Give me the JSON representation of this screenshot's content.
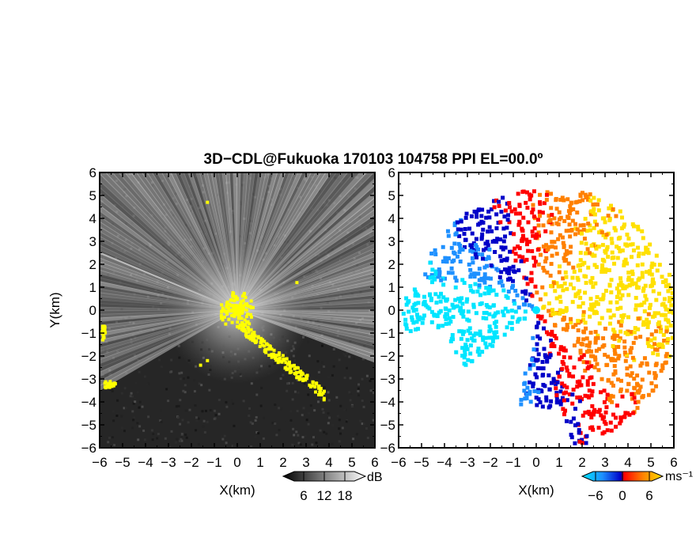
{
  "title": "3D−CDL@Fukuoka 170103 104758 PPI EL=00.0º",
  "chart_data": [
    {
      "type": "heatmap",
      "panel": "left",
      "quantity": "backscatter intensity",
      "xlabel": "X(km)",
      "ylabel": "Y(km)",
      "xlim": [
        -6,
        6
      ],
      "ylim": [
        -6,
        6
      ],
      "xticks": [
        "−6",
        "−5",
        "−4",
        "−3",
        "−2",
        "−1",
        "0",
        "1",
        "2",
        "3",
        "4",
        "5",
        "6"
      ],
      "yticks": [
        "−6",
        "−5",
        "−4",
        "−3",
        "−2",
        "−1",
        "0",
        "1",
        "2",
        "3",
        "4",
        "5",
        "6"
      ],
      "colorbar": {
        "unit": "dB",
        "range": [
          0,
          24
        ],
        "ticks": [
          6,
          12,
          18
        ],
        "tick_labels": [
          "6",
          "12",
          "18"
        ],
        "colors": [
          "#000000",
          "#ffffff"
        ]
      },
      "overlay_color": "#ffff00",
      "scan_sector_deg": [
        210,
        340
      ],
      "blank_sector_deg": [
        340,
        210
      ]
    },
    {
      "type": "heatmap",
      "panel": "right",
      "quantity": "radial velocity",
      "xlabel": "X(km)",
      "xlim": [
        -6,
        6
      ],
      "ylim": [
        -6,
        6
      ],
      "xticks": [
        "−6",
        "−5",
        "−4",
        "−3",
        "−2",
        "−1",
        "0",
        "1",
        "2",
        "3",
        "4",
        "5",
        "6"
      ],
      "yticks": [
        "−6",
        "−5",
        "−4",
        "−3",
        "−2",
        "−1",
        "0",
        "1",
        "2",
        "3",
        "4",
        "5",
        "6"
      ],
      "colorbar": {
        "unit": "ms⁻¹",
        "range": [
          -9,
          9
        ],
        "ticks": [
          -6,
          0,
          6
        ],
        "tick_labels": [
          "−6",
          "0",
          "6"
        ],
        "colors": [
          "#00e5ff",
          "#1e90ff",
          "#0000c8",
          "#ff0000",
          "#ff8000",
          "#ffe000"
        ]
      },
      "background_color": "#ffffff"
    }
  ]
}
